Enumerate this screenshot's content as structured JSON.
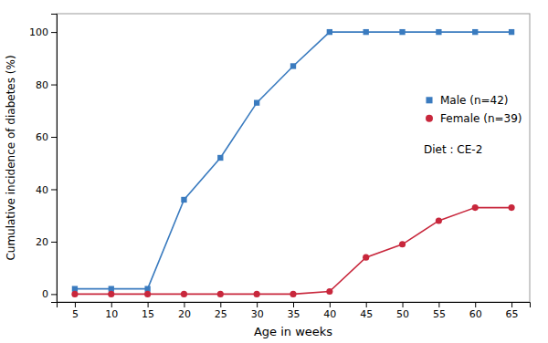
{
  "chart_data": {
    "type": "line",
    "xlabel": "Age in weeks",
    "ylabel": "Cumulative incidence of diabetes (%)",
    "x": [
      5,
      10,
      15,
      20,
      25,
      30,
      35,
      40,
      45,
      50,
      55,
      60,
      65
    ],
    "series": [
      {
        "name": "Male (n=42)",
        "color": "#3a7bbf",
        "marker": "square",
        "values": [
          2,
          2,
          2,
          36,
          52,
          73,
          87,
          100,
          100,
          100,
          100,
          100,
          100
        ]
      },
      {
        "name": "Female (n=39)",
        "color": "#c8273c",
        "marker": "circle",
        "values": [
          0,
          0,
          0,
          0,
          0,
          0,
          0,
          1,
          14,
          19,
          28,
          33,
          33
        ]
      }
    ],
    "xlim": [
      2.5,
      67.5
    ],
    "ylim": [
      -3,
      107
    ],
    "xticks": [
      5,
      10,
      15,
      20,
      25,
      30,
      35,
      40,
      45,
      50,
      55,
      60,
      65
    ],
    "yticks": [
      0,
      20,
      40,
      60,
      80,
      100
    ],
    "annotations": [
      "Diet : CE-2"
    ],
    "grid": false,
    "legend": "right"
  }
}
